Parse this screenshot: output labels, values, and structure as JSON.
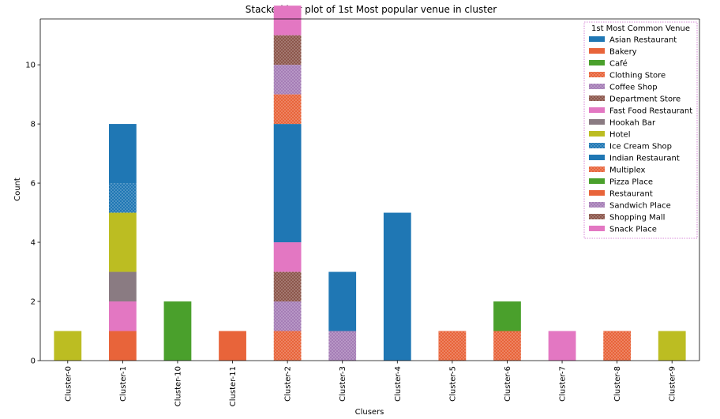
{
  "chart_data": {
    "type": "bar",
    "stacked": true,
    "title": "Stacked bar plot of 1st Most popular venue in cluster",
    "xlabel": "Clusers",
    "ylabel": "Count",
    "ylim": [
      0,
      11.55
    ],
    "yticks": [
      0,
      2,
      4,
      6,
      8,
      10
    ],
    "grid": false,
    "legend_title": "1st Most Common Venue",
    "legend_position": "top-right",
    "categories": [
      "Cluster-0",
      "Cluster-1",
      "Cluster-10",
      "Cluster-11",
      "Cluster-2",
      "Cluster-3",
      "Cluster-4",
      "Cluster-5",
      "Cluster-6",
      "Cluster-7",
      "Cluster-8",
      "Cluster-9"
    ],
    "series": [
      {
        "name": "Asian Restaurant",
        "color": "#1f77b4",
        "pattern": "solid",
        "values": [
          0,
          0,
          0,
          0,
          0,
          0,
          0,
          0,
          0,
          0,
          0,
          0
        ]
      },
      {
        "name": "Bakery",
        "color": "#e8643a",
        "pattern": "solid",
        "values": [
          0,
          1,
          0,
          1,
          0,
          0,
          0,
          0,
          0,
          0,
          0,
          0
        ]
      },
      {
        "name": "Café",
        "color": "#4aa02c",
        "pattern": "solid",
        "values": [
          0,
          0,
          2,
          0,
          0,
          0,
          0,
          0,
          0,
          0,
          0,
          0
        ]
      },
      {
        "name": "Clothing Store",
        "color": "#e8643a",
        "pattern": "dots",
        "values": [
          0,
          0,
          0,
          0,
          1,
          0,
          0,
          1,
          1,
          0,
          1,
          0
        ]
      },
      {
        "name": "Coffee Shop",
        "color": "#a57db6",
        "pattern": "dots",
        "values": [
          0,
          0,
          0,
          0,
          1,
          1,
          0,
          0,
          0,
          0,
          0,
          0
        ]
      },
      {
        "name": "Department Store",
        "color": "#8c564b",
        "pattern": "dots",
        "values": [
          0,
          0,
          0,
          0,
          1,
          0,
          0,
          0,
          0,
          0,
          0,
          0
        ]
      },
      {
        "name": "Fast Food Restaurant",
        "color": "#e377c2",
        "pattern": "solid",
        "values": [
          0,
          1,
          0,
          0,
          1,
          0,
          0,
          0,
          0,
          1,
          0,
          0
        ]
      },
      {
        "name": "Hookah Bar",
        "color": "#8a7b82",
        "pattern": "solid",
        "values": [
          0,
          1,
          0,
          0,
          0,
          0,
          0,
          0,
          0,
          0,
          0,
          0
        ]
      },
      {
        "name": "Hotel",
        "color": "#bcbd22",
        "pattern": "solid",
        "values": [
          1,
          2,
          0,
          0,
          0,
          0,
          0,
          0,
          0,
          0,
          0,
          1
        ]
      },
      {
        "name": "Ice Cream Shop",
        "color": "#1f77b4",
        "pattern": "dots",
        "values": [
          0,
          1,
          0,
          0,
          0,
          0,
          0,
          0,
          0,
          0,
          0,
          0
        ]
      },
      {
        "name": "Indian Restaurant",
        "color": "#1f77b4",
        "pattern": "solid",
        "values": [
          0,
          2,
          0,
          0,
          4,
          2,
          5,
          0,
          0,
          0,
          0,
          0
        ]
      },
      {
        "name": "Multiplex",
        "color": "#e8643a",
        "pattern": "dots",
        "values": [
          0,
          0,
          0,
          0,
          1,
          0,
          0,
          0,
          0,
          0,
          0,
          0
        ]
      },
      {
        "name": "Pizza Place",
        "color": "#4aa02c",
        "pattern": "solid",
        "values": [
          0,
          0,
          0,
          0,
          0,
          0,
          0,
          0,
          1,
          0,
          0,
          0
        ]
      },
      {
        "name": "Restaurant",
        "color": "#e8643a",
        "pattern": "solid",
        "values": [
          0,
          0,
          0,
          0,
          0,
          0,
          0,
          0,
          0,
          0,
          0,
          0
        ]
      },
      {
        "name": "Sandwich Place",
        "color": "#a57db6",
        "pattern": "dots",
        "values": [
          0,
          0,
          0,
          0,
          1,
          0,
          0,
          0,
          0,
          0,
          0,
          0
        ]
      },
      {
        "name": "Shopping Mall",
        "color": "#8c564b",
        "pattern": "dots",
        "values": [
          0,
          0,
          0,
          0,
          1,
          0,
          0,
          0,
          0,
          0,
          0,
          0
        ]
      },
      {
        "name": "Snack Place",
        "color": "#e377c2",
        "pattern": "solid",
        "values": [
          0,
          0,
          0,
          0,
          1,
          0,
          0,
          0,
          0,
          0,
          0,
          0
        ]
      }
    ]
  }
}
